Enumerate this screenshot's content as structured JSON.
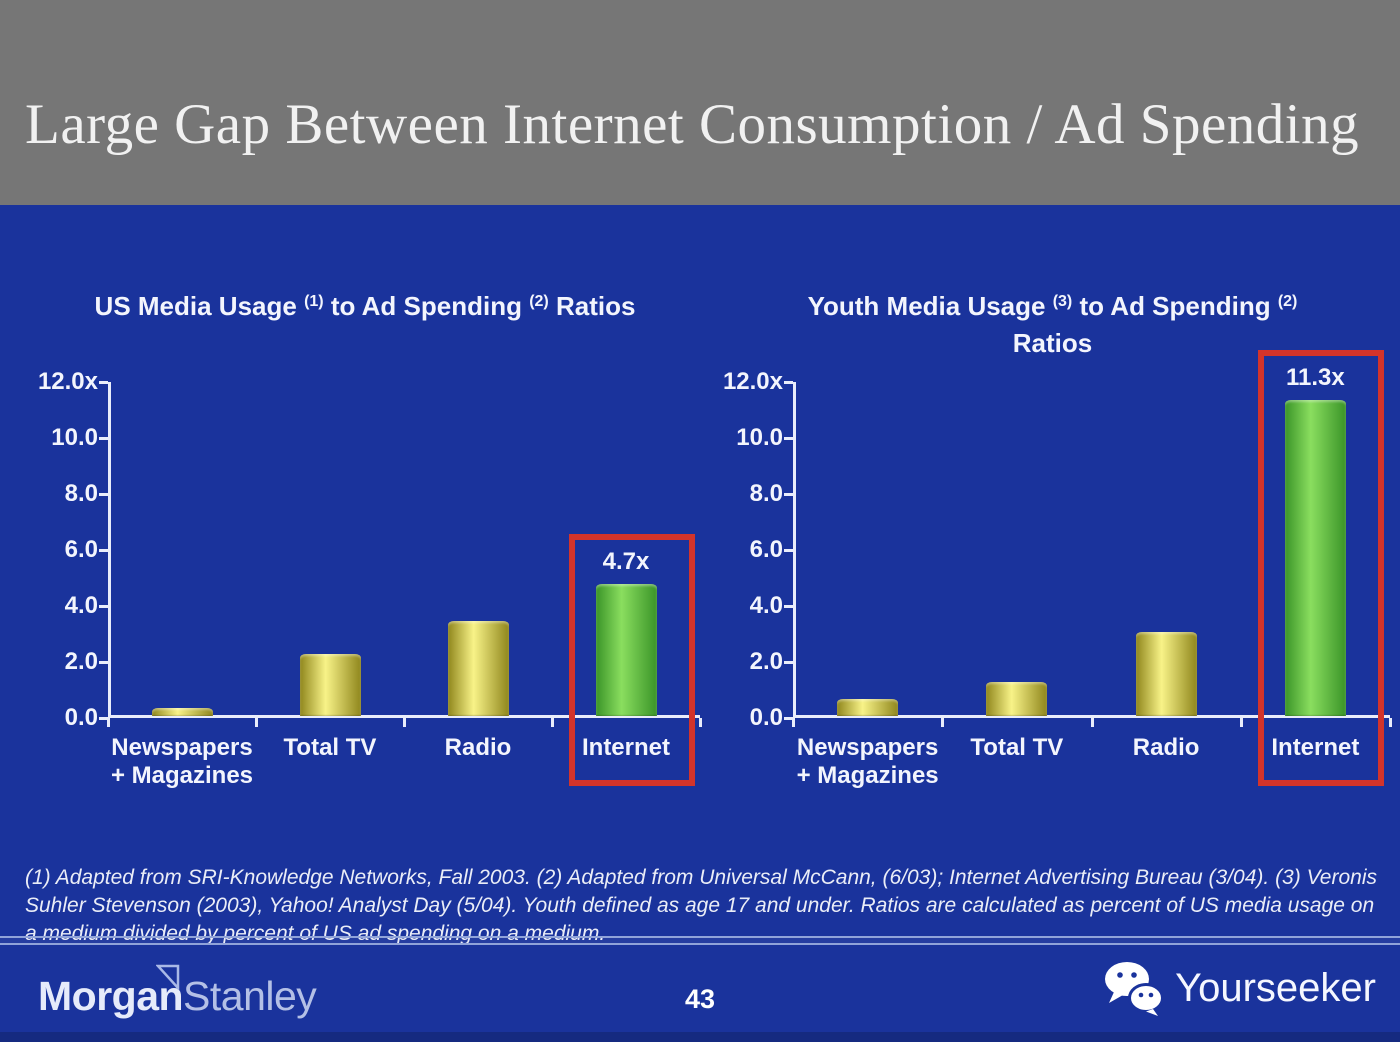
{
  "slide": {
    "title": "Large Gap Between Internet Consumption / Ad Spending"
  },
  "chart_data": [
    {
      "type": "bar",
      "title": "US Media Usage (1) to Ad Spending (2) Ratios",
      "title_segments": [
        {
          "text": "US Media Usage "
        },
        {
          "text": "(1)",
          "sup": true
        },
        {
          "text": " to Ad Spending "
        },
        {
          "text": "(2)",
          "sup": true
        },
        {
          "text": " Ratios"
        }
      ],
      "categories": [
        "Newspapers + Magazines",
        "Total TV",
        "Radio",
        "Internet"
      ],
      "category_lines": [
        [
          "Newspapers",
          "+ Magazines"
        ],
        [
          "Total TV"
        ],
        [
          "Radio"
        ],
        [
          "Internet"
        ]
      ],
      "values": [
        0.3,
        2.2,
        3.4,
        4.7
      ],
      "value_labels": [
        "",
        "",
        "",
        "4.7x"
      ],
      "bar_colors": [
        "yellow",
        "yellow",
        "yellow",
        "green"
      ],
      "highlight_index": 3,
      "ylim": [
        0,
        12
      ],
      "yticks": [
        "12.0x",
        "10.0",
        "8.0",
        "6.0",
        "4.0",
        "2.0",
        "0.0"
      ],
      "xlabel": "",
      "ylabel": "",
      "grid": false,
      "legend": false
    },
    {
      "type": "bar",
      "title": "Youth Media Usage (3) to Ad Spending (2) Ratios",
      "title_segments": [
        {
          "text": "Youth Media Usage "
        },
        {
          "text": "(3)",
          "sup": true
        },
        {
          "text": " to Ad Spending "
        },
        {
          "text": "(2)",
          "sup": true
        },
        {
          "text": "Ratios",
          "newline": true
        }
      ],
      "categories": [
        "Newspapers + Magazines",
        "Total TV",
        "Radio",
        "Internet"
      ],
      "category_lines": [
        [
          "Newspapers",
          "+ Magazines"
        ],
        [
          "Total TV"
        ],
        [
          "Radio"
        ],
        [
          "Internet"
        ]
      ],
      "values": [
        0.6,
        1.2,
        3.0,
        11.3
      ],
      "value_labels": [
        "",
        "",
        "",
        "11.3x"
      ],
      "bar_colors": [
        "yellow",
        "yellow",
        "yellow",
        "green"
      ],
      "highlight_index": 3,
      "ylim": [
        0,
        12
      ],
      "yticks": [
        "12.0x",
        "10.0",
        "8.0",
        "6.0",
        "4.0",
        "2.0",
        "0.0"
      ],
      "xlabel": "",
      "ylabel": "",
      "grid": false,
      "legend": false
    }
  ],
  "footnote": "(1) Adapted from SRI-Knowledge Networks, Fall 2003.  (2) Adapted from Universal McCann, (6/03); Internet Advertising Bureau (3/04). (3) Veronis Suhler Stevenson (2003), Yahoo! Analyst Day (5/04).  Youth defined as age 17 and under.  Ratios are calculated as percent of US media usage on a medium divided by percent of US ad spending on a medium.",
  "footer": {
    "brand_part1": "Morgan",
    "brand_part2": "Stanley",
    "page_number": "43",
    "partner_name": "Yourseeker"
  },
  "icons": {
    "partner_logo": "wechat-icon",
    "brand_mark": "triangle-flag-icon"
  },
  "colors": {
    "background_blue": "#1a339c",
    "header_gray": "#767676",
    "axis": "#e9edfb",
    "highlight_red": "#d3342b",
    "bar_yellow": {
      "edge": "#8f861c",
      "center": "#f8f388"
    },
    "bar_green": {
      "edge": "#3a9428",
      "center": "#8ade5f"
    }
  }
}
